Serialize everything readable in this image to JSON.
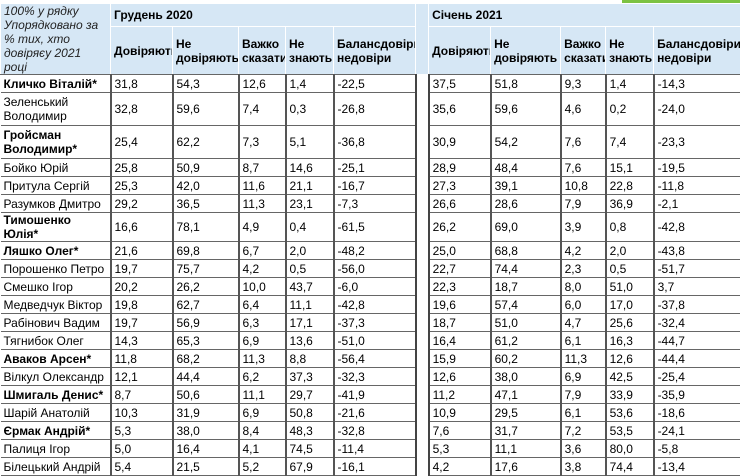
{
  "colors": {
    "header_bg": "#d6e7f5",
    "accent": "#7cc242"
  },
  "corner_label": "100% у рядку Упорядковано за % тих, хто довіряєу 2021 році",
  "periods": [
    "Грудень 2020",
    "Січень 2021"
  ],
  "columns": [
    "Довіряють",
    "Не довіряють",
    "Важко сказати",
    "Не знають",
    "Балансдовіри-недовіри"
  ],
  "rows": [
    {
      "name": "Кличко Віталій*",
      "bold": true,
      "dec2020": [
        "31,8",
        "54,3",
        "12,6",
        "1,4",
        "-22,5"
      ],
      "jan2021": [
        "37,5",
        "51,8",
        "9,3",
        "1,4",
        "-14,3"
      ]
    },
    {
      "name": "Зеленський Володимир",
      "bold": false,
      "dec2020": [
        "32,8",
        "59,6",
        "7,4",
        "0,3",
        "-26,8"
      ],
      "jan2021": [
        "35,6",
        "59,6",
        "4,6",
        "0,2",
        "-24,0"
      ]
    },
    {
      "name": "Гройсман Володимир*",
      "bold": true,
      "dec2020": [
        "25,4",
        "62,2",
        "7,3",
        "5,1",
        "-36,8"
      ],
      "jan2021": [
        "30,9",
        "54,2",
        "7,6",
        "7,4",
        "-23,3"
      ]
    },
    {
      "name": "Бойко Юрій",
      "bold": false,
      "dec2020": [
        "25,8",
        "50,9",
        "8,7",
        "14,6",
        "-25,1"
      ],
      "jan2021": [
        "28,9",
        "48,4",
        "7,6",
        "15,1",
        "-19,5"
      ]
    },
    {
      "name": "Притула Сергій",
      "bold": false,
      "dec2020": [
        "25,3",
        "42,0",
        "11,6",
        "21,1",
        "-16,7"
      ],
      "jan2021": [
        "27,3",
        "39,1",
        "10,8",
        "22,8",
        "-11,8"
      ]
    },
    {
      "name": "Разумков Дмитро",
      "bold": false,
      "dec2020": [
        "29,2",
        "36,5",
        "11,3",
        "23,1",
        "-7,3"
      ],
      "jan2021": [
        "26,6",
        "28,6",
        "7,9",
        "36,9",
        "-2,1"
      ]
    },
    {
      "name": "Тимошенко Юлія*",
      "bold": true,
      "dec2020": [
        "16,6",
        "78,1",
        "4,9",
        "0,4",
        "-61,5"
      ],
      "jan2021": [
        "26,2",
        "69,0",
        "3,9",
        "0,8",
        "-42,8"
      ]
    },
    {
      "name": "Ляшко Олег*",
      "bold": true,
      "dec2020": [
        "21,6",
        "69,8",
        "6,7",
        "2,0",
        "-48,2"
      ],
      "jan2021": [
        "25,0",
        "68,8",
        "4,2",
        "2,0",
        "-43,8"
      ]
    },
    {
      "name": "Порошенко Петро",
      "bold": false,
      "dec2020": [
        "19,7",
        "75,7",
        "4,2",
        "0,5",
        "-56,0"
      ],
      "jan2021": [
        "22,7",
        "74,4",
        "2,3",
        "0,5",
        "-51,7"
      ]
    },
    {
      "name": "Смешко Ігор",
      "bold": false,
      "dec2020": [
        "20,2",
        "26,2",
        "10,0",
        "43,7",
        "-6,0"
      ],
      "jan2021": [
        "22,3",
        "18,7",
        "8,0",
        "51,0",
        "3,7"
      ]
    },
    {
      "name": "Медведчук Віктор",
      "bold": false,
      "dec2020": [
        "19,8",
        "62,7",
        "6,4",
        "11,1",
        "-42,8"
      ],
      "jan2021": [
        "19,6",
        "57,4",
        "6,0",
        "17,0",
        "-37,8"
      ]
    },
    {
      "name": "Рабінович Вадим",
      "bold": false,
      "dec2020": [
        "19,7",
        "56,9",
        "6,3",
        "17,1",
        "-37,3"
      ],
      "jan2021": [
        "18,7",
        "51,0",
        "4,7",
        "25,6",
        "-32,4"
      ]
    },
    {
      "name": "Тягнибок Олег",
      "bold": false,
      "dec2020": [
        "14,3",
        "65,3",
        "6,9",
        "13,6",
        "-51,0"
      ],
      "jan2021": [
        "16,4",
        "61,2",
        "6,1",
        "16,3",
        "-44,7"
      ]
    },
    {
      "name": "Аваков Арсен*",
      "bold": true,
      "dec2020": [
        "11,8",
        "68,2",
        "11,3",
        "8,8",
        "-56,4"
      ],
      "jan2021": [
        "15,9",
        "60,2",
        "11,3",
        "12,6",
        "-44,4"
      ]
    },
    {
      "name": "Вілкул Олександр",
      "bold": false,
      "dec2020": [
        "12,1",
        "44,4",
        "6,2",
        "37,3",
        "-32,3"
      ],
      "jan2021": [
        "12,6",
        "38,0",
        "6,9",
        "42,5",
        "-25,4"
      ]
    },
    {
      "name": "Шмигаль Денис*",
      "bold": true,
      "dec2020": [
        "8,7",
        "50,6",
        "11,1",
        "29,7",
        "-41,9"
      ],
      "jan2021": [
        "11,2",
        "47,1",
        "7,9",
        "33,9",
        "-35,9"
      ]
    },
    {
      "name": "Шарій Анатолій",
      "bold": false,
      "dec2020": [
        "10,3",
        "31,9",
        "6,9",
        "50,8",
        "-21,6"
      ],
      "jan2021": [
        "10,9",
        "29,5",
        "6,1",
        "53,6",
        "-18,6"
      ]
    },
    {
      "name": "Єрмак Андрій*",
      "bold": true,
      "dec2020": [
        "5,3",
        "38,0",
        "8,4",
        "48,3",
        "-32,8"
      ],
      "jan2021": [
        "7,6",
        "31,7",
        "7,2",
        "53,5",
        "-24,1"
      ]
    },
    {
      "name": "Палиця Ігор",
      "bold": false,
      "dec2020": [
        "5,0",
        "16,4",
        "4,1",
        "74,5",
        "-11,4"
      ],
      "jan2021": [
        "5,3",
        "11,1",
        "3,6",
        "80,0",
        "-5,8"
      ]
    },
    {
      "name": "Білецький Андрій",
      "bold": false,
      "dec2020": [
        "5,4",
        "21,5",
        "5,2",
        "67,9",
        "-16,1"
      ],
      "jan2021": [
        "4,2",
        "17,6",
        "3,8",
        "74,4",
        "-13,4"
      ]
    }
  ]
}
